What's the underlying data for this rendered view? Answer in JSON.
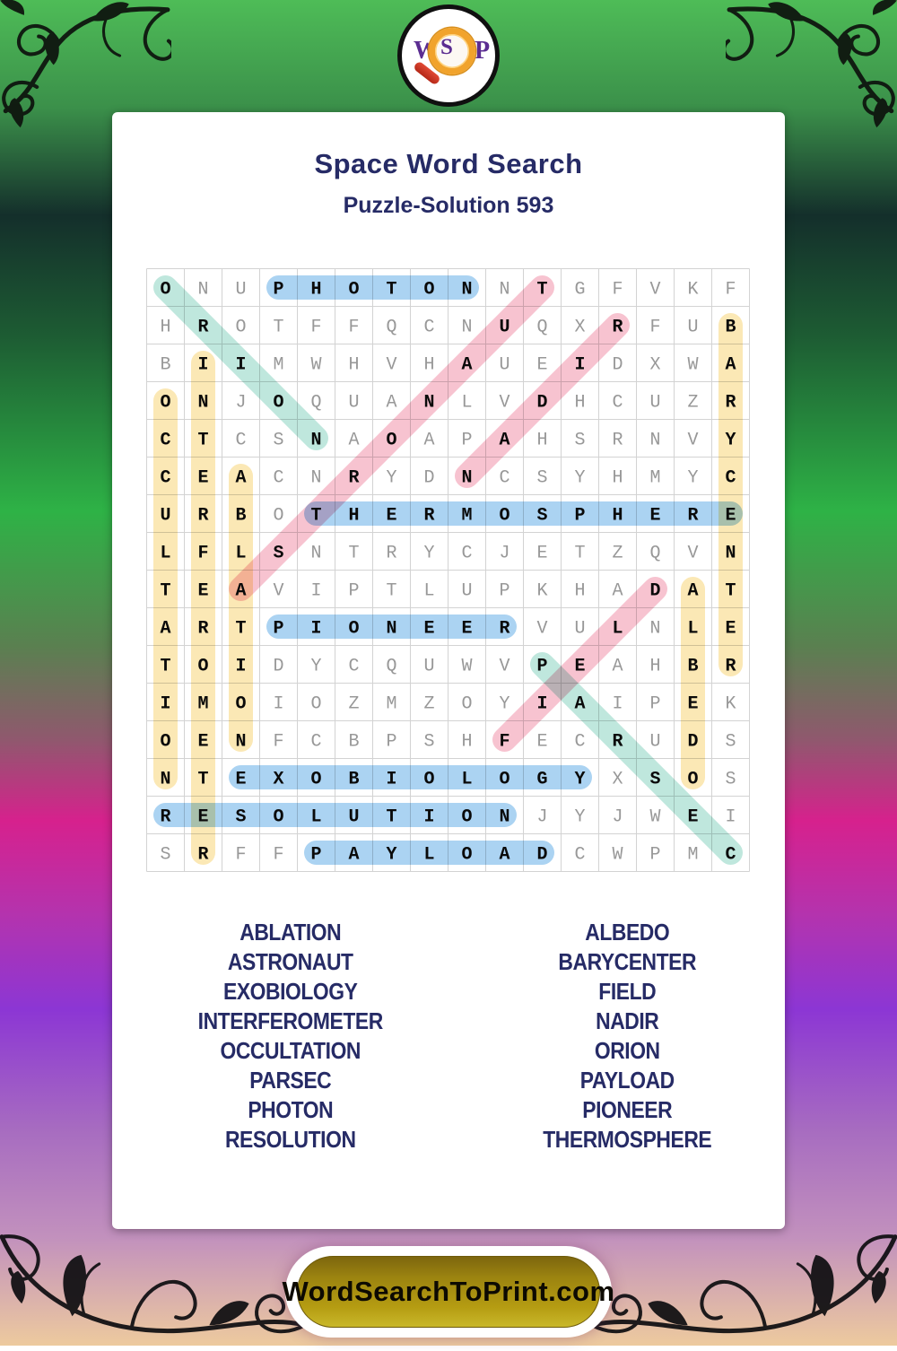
{
  "logo": {
    "letters": [
      "W",
      "S",
      "P"
    ]
  },
  "header": {
    "title": "Space Word Search",
    "subtitle": "Puzzle-Solution 593"
  },
  "grid": {
    "size": 16,
    "rows": [
      "ONUPHOTONNTGFVKF",
      "HROTFFQCNUQXRFUB",
      "BIIMWHVHAUEIDXWA",
      "ONJOQUANLVDHCUZR",
      "CTCSNAOAPAHSRNVY",
      "CEACNRYDNCSYHMYC",
      "URBOTHERMOSPHERE",
      "LFLSNTRYCJETZQVN",
      "TEAVIPTLUPKHADAT",
      "ARTPIONEERVULNLE",
      "TOIDYCQUWVPEAHBR",
      "IMOIOZMZOYIAIPEK",
      "OENFCBPSHFECRUDS",
      "NTEXOBIOLOGYXSOS",
      "RESOLUTIONJYJWEI",
      "SRFFPAYLOADCWPMC"
    ]
  },
  "highlight_colors": {
    "horizontal": "#abd3f2",
    "vertical": "#fbe8b5",
    "diagonal_down": "#bfe7dd",
    "diagonal_up": "#f7c3d0"
  },
  "solutions": [
    {
      "word": "PHOTON",
      "start": [
        1,
        4
      ],
      "end": [
        1,
        9
      ],
      "color": "horizontal"
    },
    {
      "word": "THERMOSPHERE",
      "start": [
        7,
        5
      ],
      "end": [
        7,
        16
      ],
      "color": "horizontal"
    },
    {
      "word": "PIONEER",
      "start": [
        10,
        4
      ],
      "end": [
        10,
        10
      ],
      "color": "horizontal"
    },
    {
      "word": "EXOBIOLOGY",
      "start": [
        14,
        3
      ],
      "end": [
        14,
        12
      ],
      "color": "horizontal"
    },
    {
      "word": "RESOLUTION",
      "start": [
        15,
        1
      ],
      "end": [
        15,
        10
      ],
      "color": "horizontal"
    },
    {
      "word": "PAYLOAD",
      "start": [
        16,
        5
      ],
      "end": [
        16,
        11
      ],
      "color": "horizontal"
    },
    {
      "word": "OCCULTATION",
      "start": [
        4,
        1
      ],
      "end": [
        14,
        1
      ],
      "color": "vertical"
    },
    {
      "word": "INTERFEROMETER",
      "start": [
        3,
        2
      ],
      "end": [
        16,
        2
      ],
      "color": "vertical"
    },
    {
      "word": "ABLATION",
      "start": [
        6,
        3
      ],
      "end": [
        13,
        3
      ],
      "color": "vertical"
    },
    {
      "word": "ALBEDO",
      "start": [
        9,
        15
      ],
      "end": [
        14,
        15
      ],
      "color": "vertical"
    },
    {
      "word": "BARYCENTER",
      "start": [
        2,
        16
      ],
      "end": [
        11,
        16
      ],
      "color": "vertical"
    },
    {
      "word": "ORION",
      "start": [
        1,
        1
      ],
      "end": [
        5,
        5
      ],
      "color": "diagonal_down"
    },
    {
      "word": "PARSEC",
      "start": [
        11,
        11
      ],
      "end": [
        16,
        16
      ],
      "color": "diagonal_down"
    },
    {
      "word": "ASTRONAUT",
      "start": [
        9,
        3
      ],
      "end": [
        1,
        11
      ],
      "color": "diagonal_up"
    },
    {
      "word": "NADIR",
      "start": [
        6,
        9
      ],
      "end": [
        2,
        13
      ],
      "color": "diagonal_up"
    },
    {
      "word": "FIELD",
      "start": [
        13,
        10
      ],
      "end": [
        9,
        14
      ],
      "color": "diagonal_up"
    }
  ],
  "word_lists": {
    "left": [
      "ABLATION",
      "ASTRONAUT",
      "EXOBIOLOGY",
      "INTERFEROMETER",
      "OCCULTATION",
      "PARSEC",
      "PHOTON",
      "RESOLUTION"
    ],
    "right": [
      "ALBEDO",
      "BARYCENTER",
      "FIELD",
      "NADIR",
      "ORION",
      "PAYLOAD",
      "PIONEER",
      "THERMOSPHERE"
    ]
  },
  "footer": {
    "button_label": "WordSearchToPrint.com"
  },
  "colors": {
    "title_navy": "#262b66",
    "grid_letter_gray": "#989898",
    "grid_letter_solved": "#0a0a0a",
    "grid_line": "#d3d3d3",
    "button_gold": "#b59c12",
    "logo_purple": "#5b2d91",
    "logo_orange": "#f1a32c",
    "logo_red": "#c93322"
  }
}
